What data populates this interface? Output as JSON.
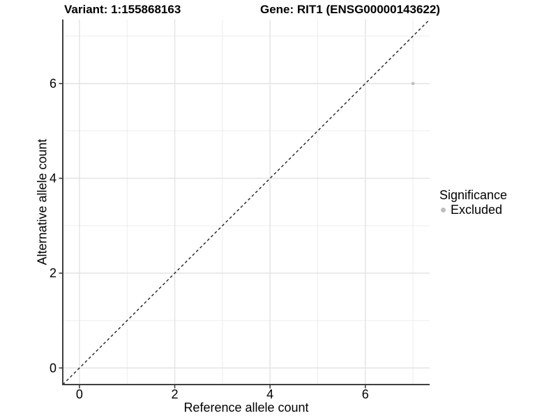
{
  "chart_data": {
    "type": "scatter",
    "titles": {
      "variant": "Variant: 1:155868163",
      "gene": "Gene: RIT1 (ENSG00000143622)"
    },
    "xlabel": "Reference allele count",
    "ylabel": "Alternative allele count",
    "xlim": [
      -0.35,
      7.35
    ],
    "ylim": [
      -0.35,
      7.35
    ],
    "x_ticks": [
      0,
      2,
      4,
      6
    ],
    "y_ticks": [
      0,
      2,
      4,
      6
    ],
    "grid_minor_x": [
      1,
      3,
      5,
      7
    ],
    "grid_minor_y": [
      1,
      3,
      5,
      7
    ],
    "grid": true,
    "identity_line": {
      "equation": "y = x",
      "style": "dashed",
      "from": [
        -0.35,
        -0.35
      ],
      "to": [
        7.35,
        7.35
      ]
    },
    "series": [
      {
        "name": "Excluded",
        "color": "#bdbdbd",
        "points": [
          {
            "x": 7,
            "y": 6
          }
        ]
      }
    ],
    "legend": {
      "title": "Significance",
      "position": "right",
      "entries": [
        {
          "label": "Excluded",
          "color": "#bdbdbd"
        }
      ]
    }
  },
  "colors": {
    "background": "#ffffff",
    "grid_major": "#e2e2e2",
    "grid_minor": "#ececec",
    "axis_line": "#3f3f3f",
    "tick_mark": "#3f3f3f",
    "identity_line": "#111111",
    "text": "#000000"
  }
}
